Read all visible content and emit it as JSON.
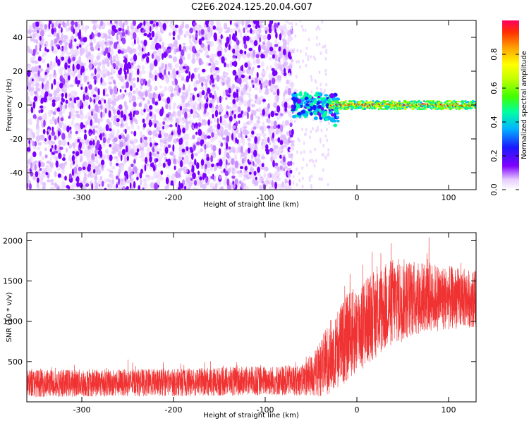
{
  "title": "C2E6.2024.125.20.04.G07",
  "chart_data": [
    {
      "type": "heatmap",
      "xlabel": "Height of straight line (km)",
      "ylabel": "Frequency (Hz)",
      "xlim": [
        -360,
        130
      ],
      "ylim": [
        -50,
        50
      ],
      "xticks": [
        -300,
        -200,
        -100,
        0,
        100
      ],
      "yticks": [
        -40,
        -20,
        0,
        20,
        40
      ],
      "colorbar": {
        "label": "Normalized spectral amplitude",
        "range": [
          0.0,
          1.0
        ],
        "ticks": [
          0.0,
          0.2,
          0.4,
          0.6,
          0.8
        ],
        "colormap": "rainbow"
      },
      "regions": [
        {
          "x_range": [
            -360,
            -70
          ],
          "description_value": "noise",
          "amplitude": [
            0.0,
            0.3
          ]
        },
        {
          "x_range": [
            -60,
            -25
          ],
          "amplitude": [
            0.2,
            0.5
          ]
        },
        {
          "x_range": [
            -25,
            130
          ],
          "peak_frequency": 0,
          "amplitude": [
            0.4,
            1.0
          ]
        }
      ]
    },
    {
      "type": "line",
      "xlabel": "Height of straight line (km)",
      "ylabel": "SNR (10 * v/v)",
      "xlim": [
        -360,
        130
      ],
      "ylim": [
        0,
        2100
      ],
      "xticks": [
        -300,
        -200,
        -100,
        0,
        100
      ],
      "yticks": [
        500,
        1000,
        1500,
        2000
      ],
      "color": "#f03232",
      "series_profile": [
        {
          "x": -360,
          "mean": 230,
          "amp": 170
        },
        {
          "x": -200,
          "mean": 240,
          "amp": 170
        },
        {
          "x": -60,
          "mean": 270,
          "amp": 190
        },
        {
          "x": -45,
          "mean": 350,
          "amp": 300
        },
        {
          "x": -30,
          "mean": 550,
          "amp": 450
        },
        {
          "x": -10,
          "mean": 800,
          "amp": 550
        },
        {
          "x": 10,
          "mean": 1000,
          "amp": 550
        },
        {
          "x": 40,
          "mean": 1250,
          "amp": 550
        },
        {
          "x": 70,
          "mean": 1300,
          "amp": 450
        },
        {
          "x": 130,
          "mean": 1280,
          "amp": 350
        }
      ]
    }
  ]
}
